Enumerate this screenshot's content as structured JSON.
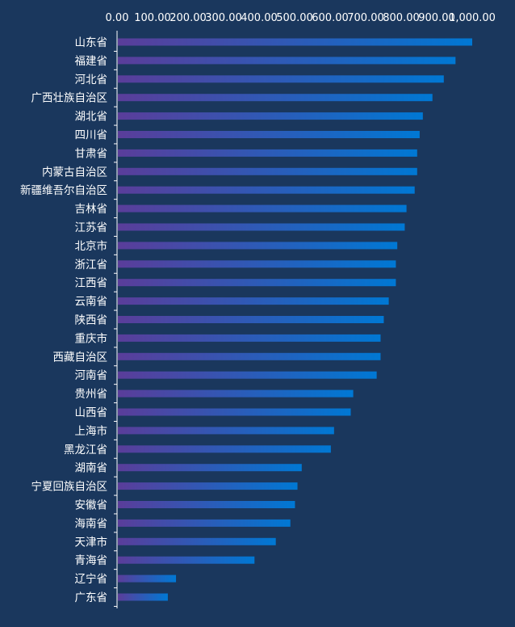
{
  "colors": {
    "background": "#1a375d",
    "bar_start": "#5a3d9a",
    "bar_end": "#0078d4",
    "axis": "#ffffff",
    "text": "#ffffff"
  },
  "chart_data": {
    "type": "bar",
    "orientation": "horizontal",
    "title": "",
    "xlabel": "",
    "ylabel": "",
    "x_axis_position": "top",
    "xlim": [
      0,
      1000
    ],
    "x_ticks": [
      "0.00",
      "100.00",
      "200.00",
      "300.00",
      "400.00",
      "500.00",
      "600.00",
      "700.00",
      "800.00",
      "900.00",
      "1,000.00"
    ],
    "grid": false,
    "legend": "none",
    "categories": [
      "山东省",
      "福建省",
      "河北省",
      "广西壮族自治区",
      "湖北省",
      "四川省",
      "甘肃省",
      "内蒙古自治区",
      "新疆维吾尔自治区",
      "吉林省",
      "江苏省",
      "北京市",
      "浙江省",
      "江西省",
      "云南省",
      "陕西省",
      "重庆市",
      "西藏自治区",
      "河南省",
      "贵州省",
      "山西省",
      "上海市",
      "黑龙江省",
      "湖南省",
      "宁夏回族自治区",
      "安徽省",
      "海南省",
      "天津市",
      "青海省",
      "辽宁省",
      "广东省"
    ],
    "values": [
      1000,
      953,
      920,
      888,
      861,
      852,
      845,
      845,
      838,
      815,
      810,
      789,
      785,
      785,
      765,
      751,
      742,
      742,
      731,
      665,
      658,
      611,
      602,
      520,
      508,
      501,
      488,
      447,
      387,
      166,
      143
    ]
  }
}
